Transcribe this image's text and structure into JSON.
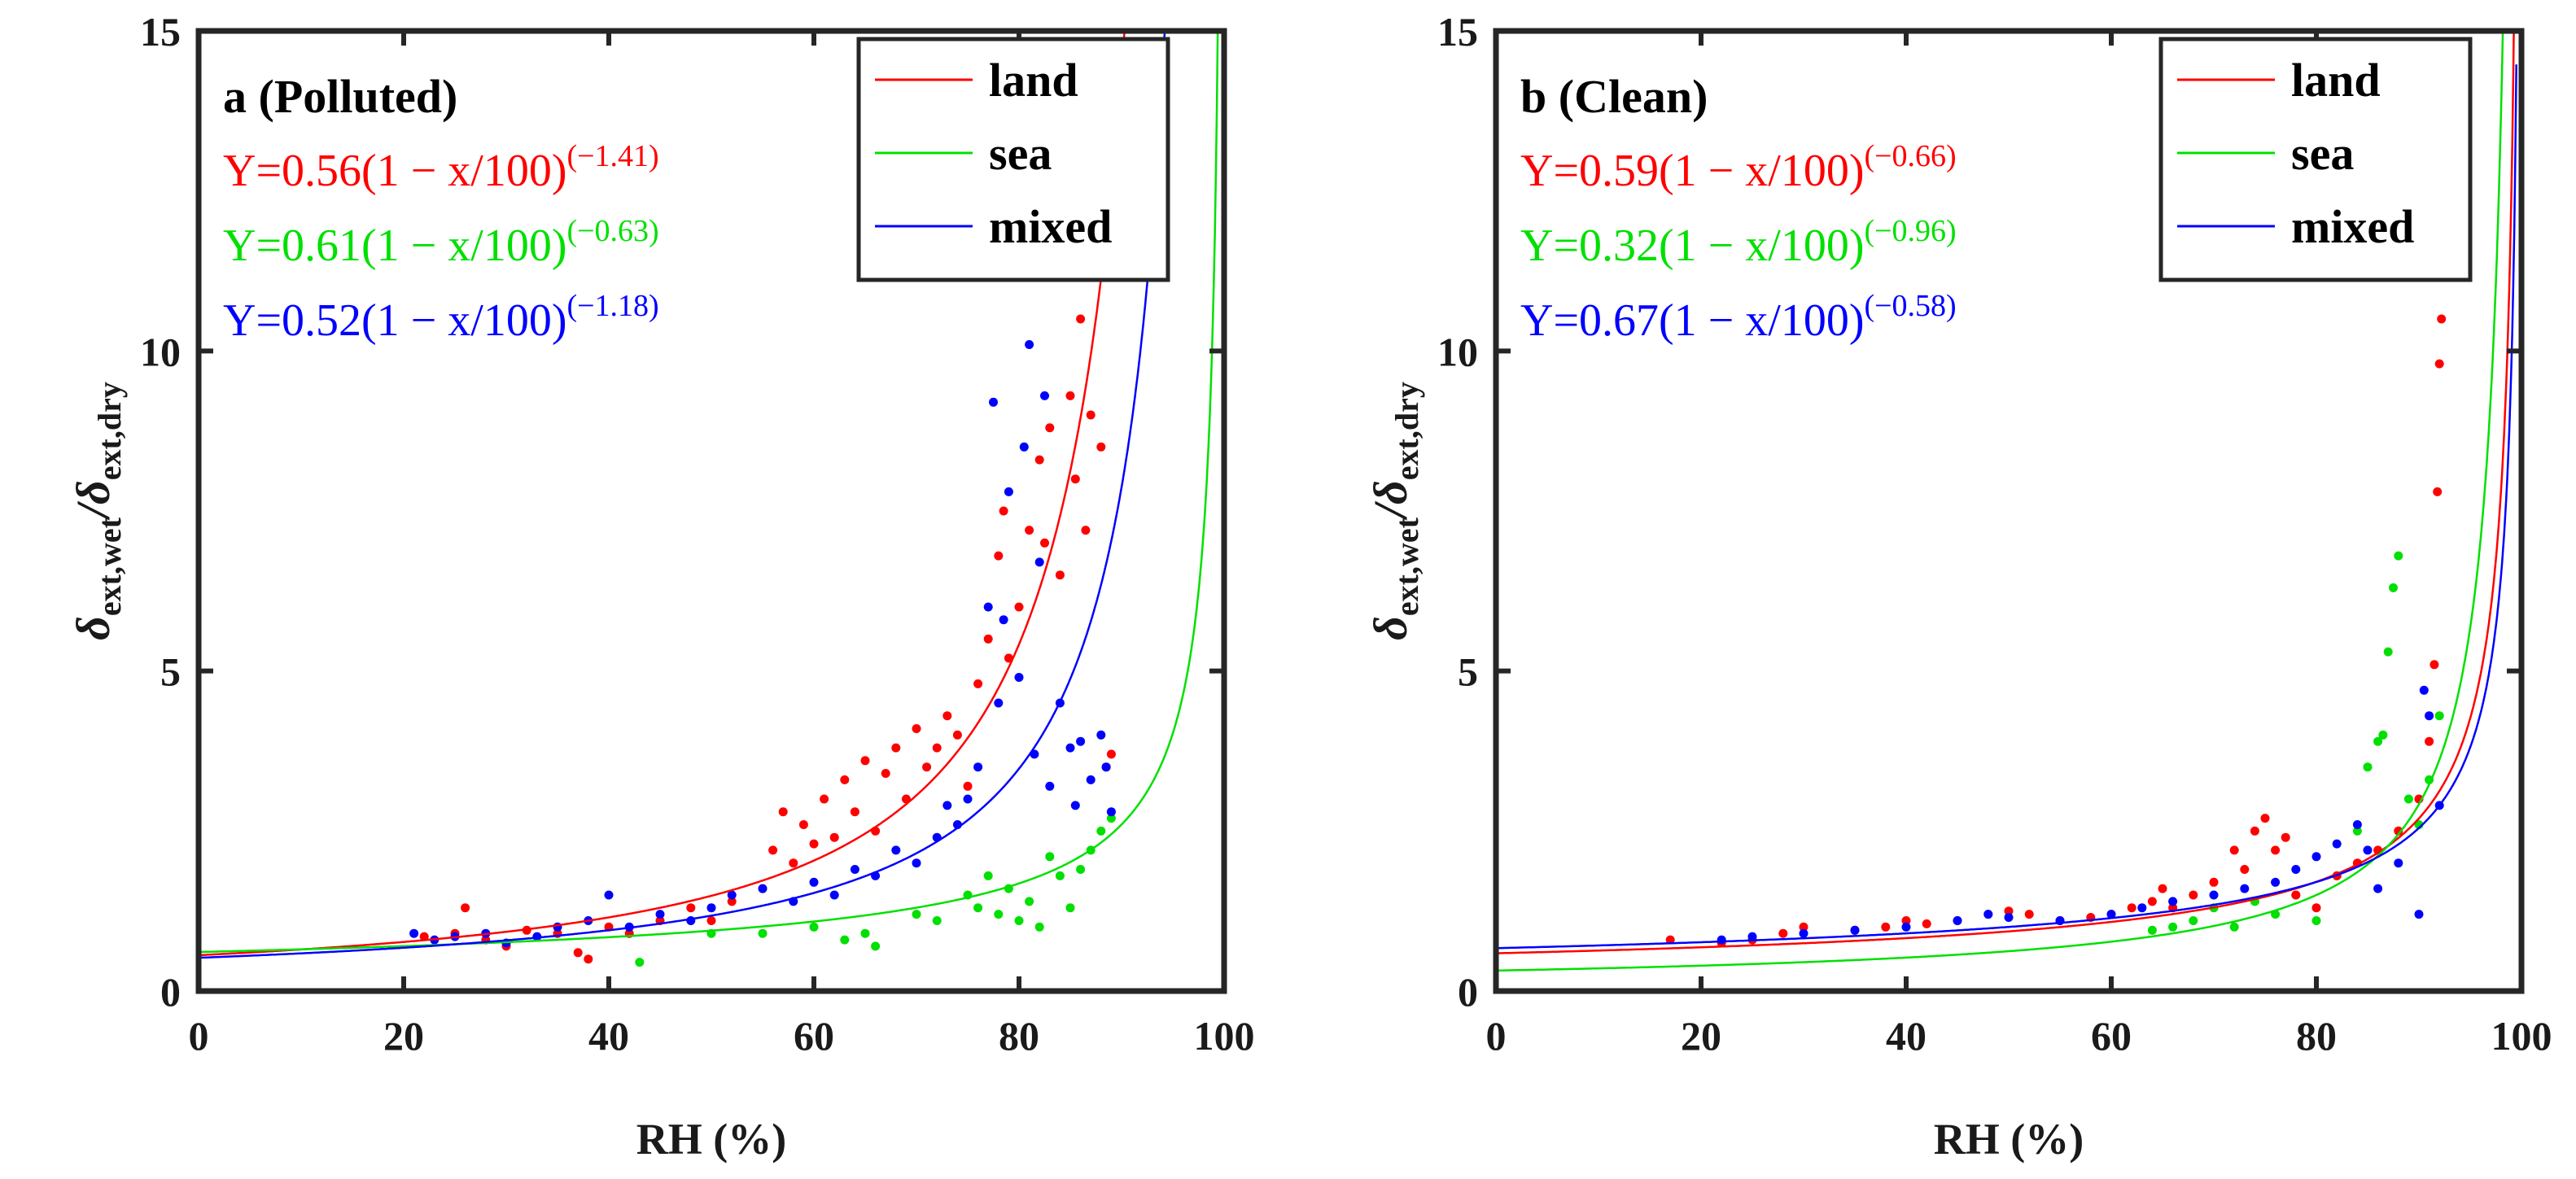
{
  "chart_data": [
    {
      "type": "scatter",
      "title": "a (Polluted)",
      "xlabel": "RH (%)",
      "ylabel": "δ",
      "ylabel_sub1": "ext,wet",
      "ylabel_sub2": "ext,dry",
      "xlim": [
        0,
        100
      ],
      "ylim": [
        0,
        15
      ],
      "xticks": [
        "0",
        "20",
        "40",
        "60",
        "80",
        "100"
      ],
      "yticks": [
        "0",
        "5",
        "10",
        "15"
      ],
      "legend": [
        "land",
        "sea",
        "mixed"
      ],
      "colors": {
        "land": "#ff0000",
        "sea": "#00e000",
        "mixed": "#0000ff"
      },
      "equations": [
        {
          "series": "land",
          "prefix": "Y=0.56(1 − x/100)",
          "exponent": "(−1.41)"
        },
        {
          "series": "sea",
          "prefix": "Y=0.61(1 − x/100)",
          "exponent": "(−0.63)"
        },
        {
          "series": "mixed",
          "prefix": "Y=0.52(1 − x/100)",
          "exponent": "(−1.18)"
        }
      ],
      "fits": [
        {
          "series": "land",
          "a": 0.56,
          "b": -1.41
        },
        {
          "series": "sea",
          "a": 0.61,
          "b": -0.63
        },
        {
          "series": "mixed",
          "a": 0.52,
          "b": -1.18
        }
      ],
      "series": [
        {
          "name": "land",
          "points": [
            [
              22,
              0.85
            ],
            [
              25,
              0.9
            ],
            [
              26,
              1.3
            ],
            [
              28,
              0.8
            ],
            [
              30,
              0.7
            ],
            [
              32,
              0.95
            ],
            [
              35,
              0.9
            ],
            [
              37,
              0.6
            ],
            [
              38,
              0.5
            ],
            [
              40,
              1.0
            ],
            [
              42,
              0.9
            ],
            [
              45,
              1.1
            ],
            [
              48,
              1.3
            ],
            [
              50,
              1.1
            ],
            [
              52,
              1.4
            ],
            [
              55,
              1.6
            ],
            [
              56,
              2.2
            ],
            [
              57,
              2.8
            ],
            [
              58,
              2.0
            ],
            [
              59,
              2.6
            ],
            [
              60,
              2.3
            ],
            [
              61,
              3.0
            ],
            [
              62,
              2.4
            ],
            [
              63,
              3.3
            ],
            [
              64,
              2.8
            ],
            [
              65,
              3.6
            ],
            [
              66,
              2.5
            ],
            [
              67,
              3.4
            ],
            [
              68,
              3.8
            ],
            [
              69,
              3.0
            ],
            [
              70,
              4.1
            ],
            [
              71,
              3.5
            ],
            [
              72,
              3.8
            ],
            [
              73,
              4.3
            ],
            [
              74,
              4.0
            ],
            [
              75,
              3.2
            ],
            [
              76,
              4.8
            ],
            [
              77,
              5.5
            ],
            [
              78,
              6.8
            ],
            [
              78.5,
              7.5
            ],
            [
              79,
              5.2
            ],
            [
              80,
              6.0
            ],
            [
              81,
              7.2
            ],
            [
              82,
              8.3
            ],
            [
              82.5,
              7.0
            ],
            [
              83,
              8.8
            ],
            [
              84,
              6.5
            ],
            [
              85,
              9.3
            ],
            [
              85.5,
              8.0
            ],
            [
              86,
              10.5
            ],
            [
              86.5,
              7.2
            ],
            [
              87,
              9.0
            ],
            [
              88,
              8.5
            ],
            [
              88.5,
              3.5
            ],
            [
              89,
              3.7
            ]
          ]
        },
        {
          "name": "sea",
          "points": [
            [
              43,
              0.45
            ],
            [
              50,
              0.9
            ],
            [
              55,
              0.9
            ],
            [
              60,
              1.0
            ],
            [
              63,
              0.8
            ],
            [
              65,
              0.9
            ],
            [
              66,
              0.7
            ],
            [
              70,
              1.2
            ],
            [
              72,
              1.1
            ],
            [
              75,
              1.5
            ],
            [
              76,
              1.3
            ],
            [
              77,
              1.8
            ],
            [
              78,
              1.2
            ],
            [
              79,
              1.6
            ],
            [
              80,
              1.1
            ],
            [
              81,
              1.4
            ],
            [
              82,
              1.0
            ],
            [
              83,
              2.1
            ],
            [
              84,
              1.8
            ],
            [
              85,
              1.3
            ],
            [
              86,
              1.9
            ],
            [
              87,
              2.2
            ],
            [
              88,
              2.5
            ],
            [
              89,
              2.7
            ]
          ]
        },
        {
          "name": "mixed",
          "points": [
            [
              21,
              0.9
            ],
            [
              23,
              0.8
            ],
            [
              25,
              0.85
            ],
            [
              28,
              0.9
            ],
            [
              30,
              0.75
            ],
            [
              33,
              0.85
            ],
            [
              35,
              1.0
            ],
            [
              38,
              1.1
            ],
            [
              40,
              1.5
            ],
            [
              42,
              1.0
            ],
            [
              45,
              1.2
            ],
            [
              48,
              1.1
            ],
            [
              50,
              1.3
            ],
            [
              52,
              1.5
            ],
            [
              55,
              1.6
            ],
            [
              58,
              1.4
            ],
            [
              60,
              1.7
            ],
            [
              62,
              1.5
            ],
            [
              64,
              1.9
            ],
            [
              66,
              1.8
            ],
            [
              68,
              2.2
            ],
            [
              70,
              2.0
            ],
            [
              72,
              2.4
            ],
            [
              73,
              2.9
            ],
            [
              74,
              2.6
            ],
            [
              75,
              3.0
            ],
            [
              76,
              3.5
            ],
            [
              77,
              6.0
            ],
            [
              77.5,
              9.2
            ],
            [
              78,
              4.5
            ],
            [
              78.5,
              5.8
            ],
            [
              79,
              7.8
            ],
            [
              80,
              4.9
            ],
            [
              80.5,
              8.5
            ],
            [
              81,
              10.1
            ],
            [
              81.5,
              3.7
            ],
            [
              82,
              6.7
            ],
            [
              82.5,
              9.3
            ],
            [
              83,
              3.2
            ],
            [
              84,
              4.5
            ],
            [
              85,
              3.8
            ],
            [
              85.5,
              2.9
            ],
            [
              86,
              3.9
            ],
            [
              87,
              3.3
            ],
            [
              88,
              4.0
            ],
            [
              88.5,
              3.5
            ],
            [
              89,
              2.8
            ]
          ]
        }
      ]
    },
    {
      "type": "scatter",
      "title": "b (Clean)",
      "xlabel": "RH (%)",
      "ylabel": "δ",
      "ylabel_sub1": "ext,wet",
      "ylabel_sub2": "ext,dry",
      "xlim": [
        0,
        100
      ],
      "ylim": [
        0,
        15
      ],
      "xticks": [
        "0",
        "20",
        "40",
        "60",
        "80",
        "100"
      ],
      "yticks": [
        "0",
        "5",
        "10",
        "15"
      ],
      "legend": [
        "land",
        "sea",
        "mixed"
      ],
      "colors": {
        "land": "#ff0000",
        "sea": "#00e000",
        "mixed": "#0000ff"
      },
      "equations": [
        {
          "series": "land",
          "prefix": "Y=0.59(1 − x/100)",
          "exponent": "(−0.66)"
        },
        {
          "series": "sea",
          "prefix": "Y=0.32(1 − x/100)",
          "exponent": "(−0.96)"
        },
        {
          "series": "mixed",
          "prefix": "Y=0.67(1 − x/100)",
          "exponent": "(−0.58)"
        }
      ],
      "fits": [
        {
          "series": "land",
          "a": 0.59,
          "b": -0.66
        },
        {
          "series": "sea",
          "a": 0.32,
          "b": -0.96
        },
        {
          "series": "mixed",
          "a": 0.67,
          "b": -0.58
        }
      ],
      "series": [
        {
          "name": "land",
          "points": [
            [
              17,
              0.8
            ],
            [
              22,
              0.75
            ],
            [
              25,
              0.8
            ],
            [
              28,
              0.9
            ],
            [
              30,
              1.0
            ],
            [
              35,
              0.95
            ],
            [
              38,
              1.0
            ],
            [
              40,
              1.1
            ],
            [
              42,
              1.05
            ],
            [
              45,
              1.1
            ],
            [
              48,
              1.2
            ],
            [
              50,
              1.25
            ],
            [
              52,
              1.2
            ],
            [
              55,
              1.1
            ],
            [
              58,
              1.15
            ],
            [
              60,
              1.2
            ],
            [
              62,
              1.3
            ],
            [
              64,
              1.4
            ],
            [
              65,
              1.6
            ],
            [
              66,
              1.3
            ],
            [
              68,
              1.5
            ],
            [
              70,
              1.7
            ],
            [
              72,
              2.2
            ],
            [
              73,
              1.9
            ],
            [
              74,
              2.5
            ],
            [
              75,
              2.7
            ],
            [
              76,
              2.2
            ],
            [
              77,
              2.4
            ],
            [
              78,
              1.5
            ],
            [
              80,
              1.3
            ],
            [
              82,
              1.8
            ],
            [
              84,
              2.0
            ],
            [
              86,
              2.2
            ],
            [
              88,
              2.5
            ],
            [
              90,
              3.0
            ],
            [
              91,
              3.9
            ],
            [
              91.5,
              5.1
            ],
            [
              91.8,
              7.8
            ],
            [
              92,
              9.8
            ],
            [
              92.2,
              10.5
            ]
          ]
        },
        {
          "name": "sea",
          "points": [
            [
              64,
              0.95
            ],
            [
              66,
              1.0
            ],
            [
              68,
              1.1
            ],
            [
              70,
              1.3
            ],
            [
              72,
              1.0
            ],
            [
              74,
              1.4
            ],
            [
              76,
              1.2
            ],
            [
              78,
              1.5
            ],
            [
              80,
              1.1
            ],
            [
              82,
              1.8
            ],
            [
              84,
              2.5
            ],
            [
              85,
              3.5
            ],
            [
              86,
              3.9
            ],
            [
              86.5,
              4.0
            ],
            [
              87,
              5.3
            ],
            [
              87.5,
              6.3
            ],
            [
              88,
              6.8
            ],
            [
              89,
              3.0
            ],
            [
              90,
              2.6
            ],
            [
              91,
              3.3
            ],
            [
              92,
              4.3
            ]
          ]
        },
        {
          "name": "mixed",
          "points": [
            [
              22,
              0.8
            ],
            [
              25,
              0.85
            ],
            [
              30,
              0.9
            ],
            [
              35,
              0.95
            ],
            [
              40,
              1.0
            ],
            [
              45,
              1.1
            ],
            [
              48,
              1.2
            ],
            [
              50,
              1.15
            ],
            [
              55,
              1.1
            ],
            [
              60,
              1.2
            ],
            [
              63,
              1.3
            ],
            [
              66,
              1.4
            ],
            [
              70,
              1.5
            ],
            [
              73,
              1.6
            ],
            [
              76,
              1.7
            ],
            [
              78,
              1.9
            ],
            [
              80,
              2.1
            ],
            [
              82,
              2.3
            ],
            [
              84,
              2.6
            ],
            [
              85,
              2.2
            ],
            [
              86,
              1.6
            ],
            [
              88,
              2.0
            ],
            [
              90,
              1.2
            ],
            [
              90.5,
              4.7
            ],
            [
              91,
              4.3
            ],
            [
              92,
              2.9
            ]
          ]
        }
      ]
    }
  ]
}
